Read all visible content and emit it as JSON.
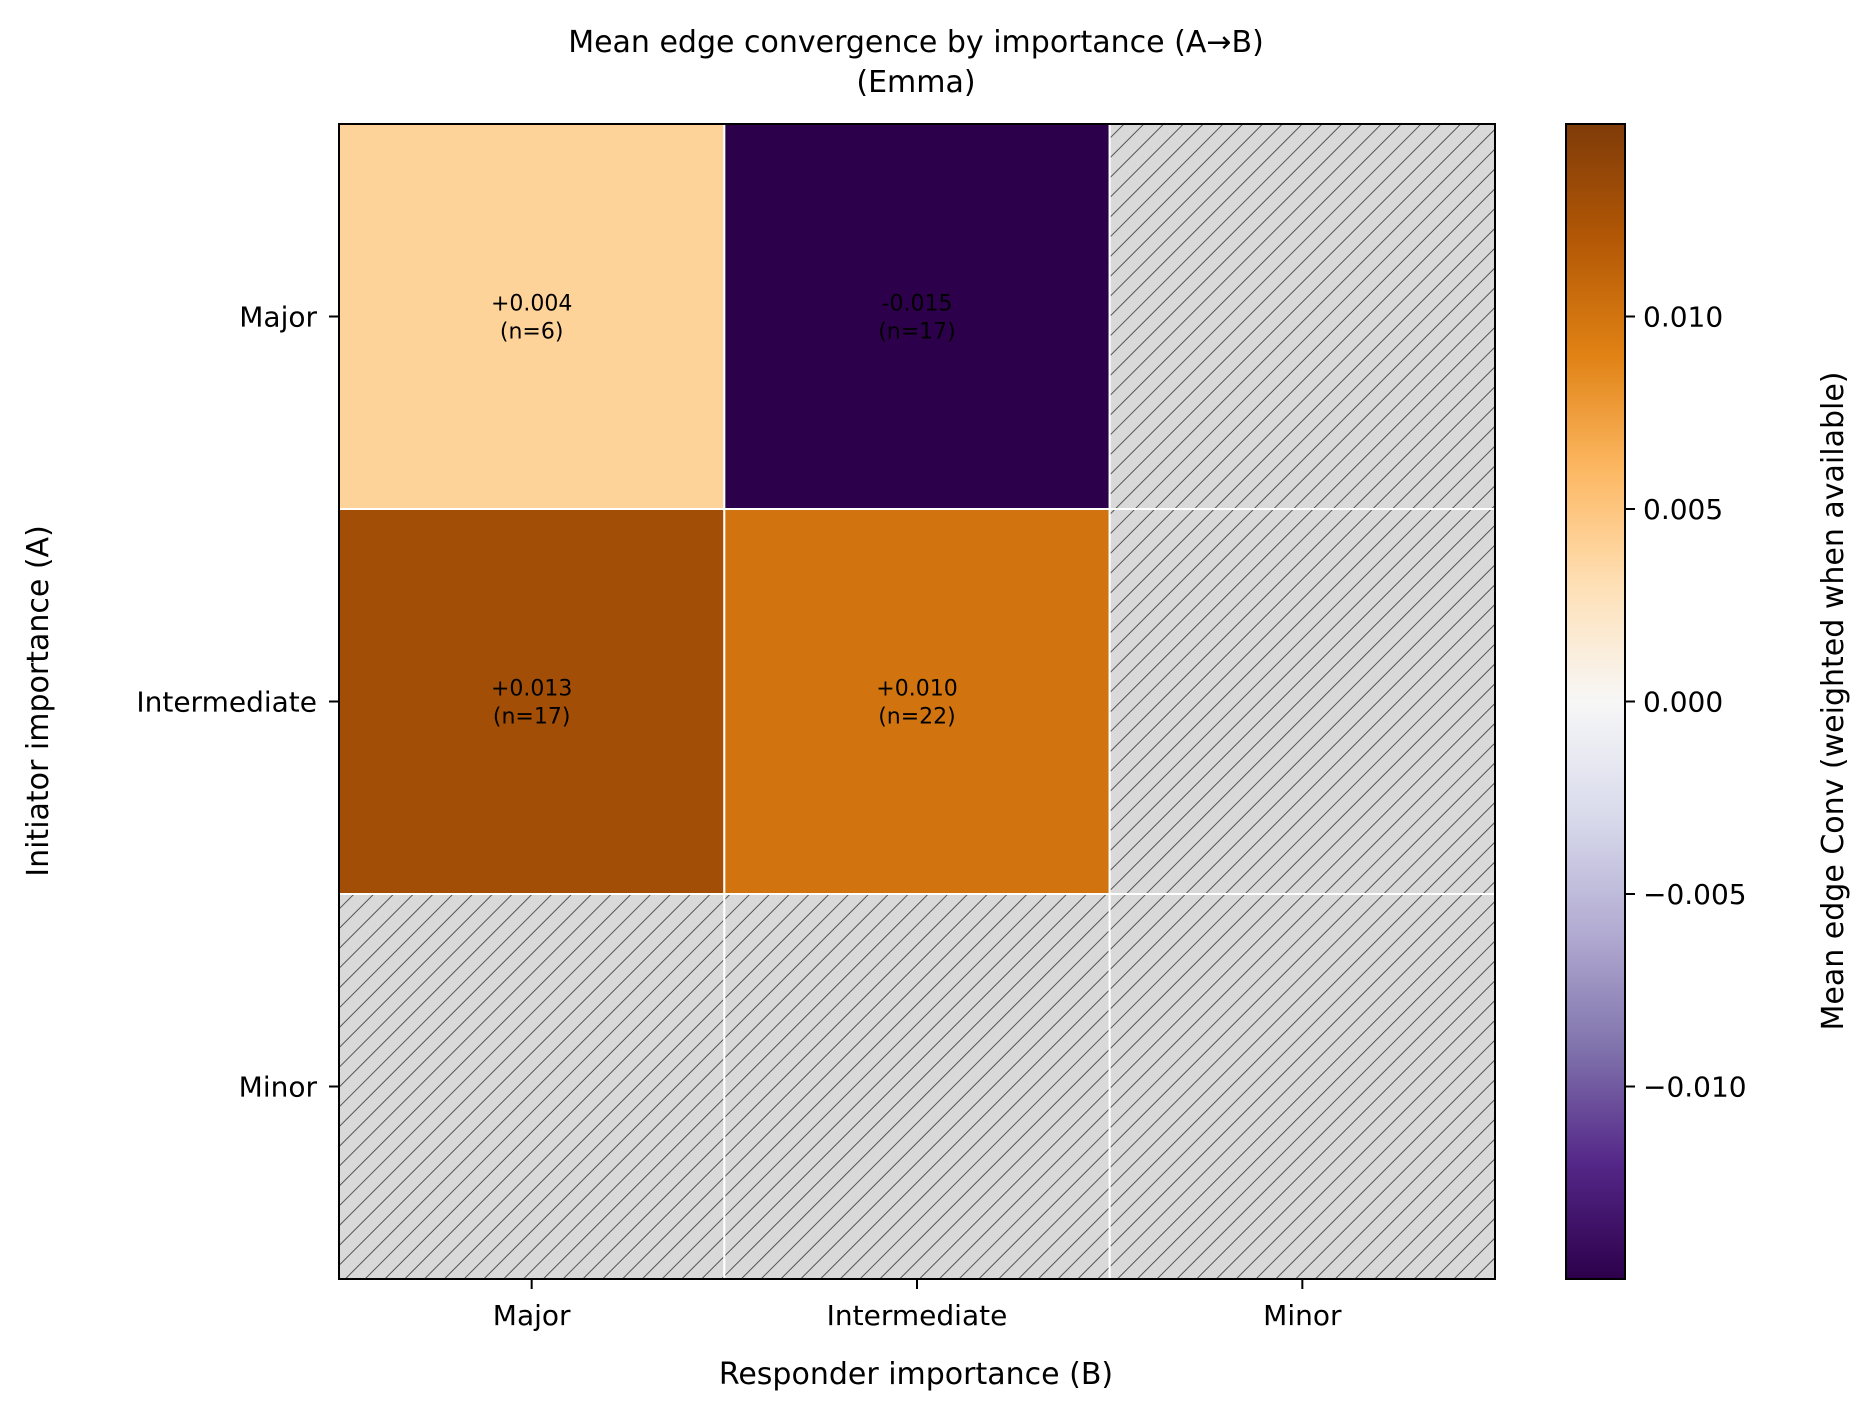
{
  "chart_data": {
    "type": "heatmap",
    "title": "Mean edge convergence by importance (A→B)",
    "subtitle": "(Emma)",
    "xlabel": "Responder importance (B)",
    "ylabel": "Initiator importance (A)",
    "x_categories": [
      "Major",
      "Intermediate",
      "Minor"
    ],
    "y_categories": [
      "Major",
      "Intermediate",
      "Minor"
    ],
    "cells": [
      {
        "row": 0,
        "col": 0,
        "value": 0.004,
        "label": "+0.004",
        "n_label": "(n=6)"
      },
      {
        "row": 0,
        "col": 1,
        "value": -0.015,
        "label": "-0.015",
        "n_label": "(n=17)"
      },
      {
        "row": 0,
        "col": 2,
        "value": null
      },
      {
        "row": 1,
        "col": 0,
        "value": 0.013,
        "label": "+0.013",
        "n_label": "(n=17)"
      },
      {
        "row": 1,
        "col": 1,
        "value": 0.01,
        "label": "+0.010",
        "n_label": "(n=22)"
      },
      {
        "row": 1,
        "col": 2,
        "value": null
      },
      {
        "row": 2,
        "col": 0,
        "value": null
      },
      {
        "row": 2,
        "col": 1,
        "value": null
      },
      {
        "row": 2,
        "col": 2,
        "value": null
      }
    ],
    "colorbar": {
      "label": "Mean edge Conv (weighted when available)",
      "vmin": -0.015,
      "vmax": 0.015,
      "ticks": [
        0.01,
        0.005,
        0.0,
        -0.005,
        -0.01
      ],
      "tick_labels": [
        "0.010",
        "0.005",
        "0.000",
        "−0.005",
        "−0.010"
      ],
      "colormap": "PuOr_r",
      "stops": [
        "#2d004b",
        "#542788",
        "#8073ac",
        "#b2abd2",
        "#d8daeb",
        "#f7f7f7",
        "#fee0b6",
        "#fdb863",
        "#e08214",
        "#b35806",
        "#7f3b08"
      ]
    },
    "missing_color": "#d9d9d9",
    "hatch_color": "#555555"
  }
}
